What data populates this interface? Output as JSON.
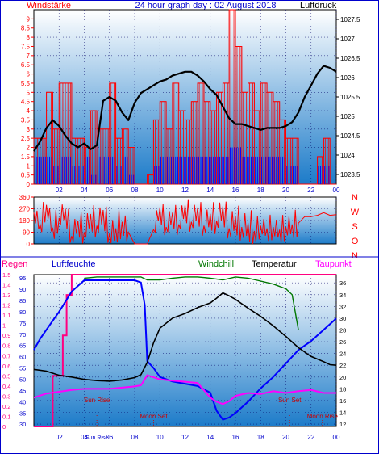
{
  "header": {
    "left_title": "Windstärke",
    "center_title": "24 hour graph day : 02 August 2018",
    "right_title": "Luftdruck"
  },
  "colors": {
    "wind_speed": "#ff0000",
    "wind_bar_low": "#0000ff",
    "pressure": "#000000",
    "direction": "#ff0000",
    "humidity": "#0000ff",
    "windchill": "#007700",
    "temperature": "#000000",
    "dewpoint": "#ff00ff",
    "rain": "#ff0080",
    "sun_text": "#cc0000",
    "bg_top": "#ffffff",
    "bg_bottom": "#1c7bc9"
  },
  "x_tick_labels": [
    "02",
    "04",
    "06",
    "08",
    "10",
    "12",
    "14",
    "16",
    "18",
    "20",
    "22",
    "00"
  ],
  "chart_data": [
    {
      "type": "bar",
      "name_left_axis": "Windstärke",
      "name_right_axis": "Luftdruck",
      "left_ticks": [
        "0",
        "0.5",
        "1",
        "1.5",
        "2",
        "2.5",
        "3",
        "3.5",
        "4",
        "4.5",
        "5",
        "5.5",
        "6",
        "6.5",
        "7",
        "7.5",
        "8",
        "8.5",
        "9"
      ],
      "right_ticks": [
        "1023.5",
        "1024",
        "1024.5",
        "1025",
        "1025.5",
        "1026",
        "1026.5",
        "1027",
        "1027.5"
      ],
      "ylim_left": [
        0,
        9.5
      ],
      "ylim_right": [
        1023.25,
        1027.75
      ],
      "xlim_hours": [
        0,
        24
      ],
      "pressure_series": {
        "x": [
          0,
          0.5,
          1,
          1.5,
          2,
          2.5,
          3,
          3.5,
          4,
          4.5,
          5,
          5.5,
          6,
          6.5,
          7,
          7.5,
          8,
          8.5,
          9,
          9.5,
          10,
          10.5,
          11,
          11.5,
          12,
          12.5,
          13,
          13.5,
          14,
          14.5,
          15,
          15.5,
          16,
          16.5,
          17,
          17.5,
          18,
          18.5,
          19,
          19.5,
          20,
          20.5,
          21,
          21.5,
          22,
          22.5,
          23,
          23.5,
          24
        ],
        "y": [
          1024.1,
          1024.35,
          1024.7,
          1024.9,
          1024.75,
          1024.5,
          1024.3,
          1024.2,
          1024.3,
          1024.15,
          1024.25,
          1025.4,
          1025.5,
          1025.4,
          1025.1,
          1024.9,
          1025.35,
          1025.6,
          1025.7,
          1025.8,
          1025.9,
          1025.95,
          1026.05,
          1026.1,
          1026.15,
          1026.15,
          1026.05,
          1025.9,
          1025.7,
          1025.55,
          1025.25,
          1024.95,
          1024.8,
          1024.8,
          1024.75,
          1024.7,
          1024.65,
          1024.7,
          1024.7,
          1024.7,
          1024.75,
          1024.85,
          1025.1,
          1025.5,
          1025.8,
          1026.1,
          1026.3,
          1026.25,
          1026.15
        ]
      },
      "wind_gust_series": {
        "x": [
          0,
          1,
          1.5,
          2,
          3,
          4,
          4.5,
          5,
          6,
          6.5,
          7,
          7.5,
          8,
          9,
          9.5,
          10,
          10.5,
          11,
          11.5,
          12,
          12.5,
          13,
          13.5,
          14,
          14.5,
          15,
          15.5,
          16,
          16.5,
          17,
          17.5,
          18,
          18.5,
          19,
          19.5,
          20,
          20.5,
          21,
          22,
          22.5,
          23,
          23.5
        ],
        "y": [
          2.5,
          5,
          3,
          5.5,
          2.5,
          2,
          4,
          3,
          5.5,
          2.5,
          3,
          2,
          0,
          0.5,
          3.5,
          4.5,
          3,
          5.5,
          4,
          3.5,
          4.5,
          5.5,
          4.5,
          4,
          5,
          5.5,
          9.5,
          7.5,
          5,
          5.5,
          4,
          5.5,
          5,
          4.5,
          3.5,
          2.5,
          2.5,
          0,
          0,
          1.5,
          2.5,
          0
        ]
      },
      "wind_speed_series": {
        "x": [
          0,
          1,
          1.5,
          2,
          3,
          4,
          4.5,
          5,
          6,
          6.5,
          7,
          7.5,
          8,
          9,
          9.5,
          10,
          10.5,
          11,
          11.5,
          12,
          12.5,
          13,
          13.5,
          14,
          14.5,
          15,
          15.5,
          16,
          16.5,
          17,
          17.5,
          18,
          18.5,
          19,
          19.5,
          20,
          20.5,
          21,
          22,
          22.5,
          23,
          23.5
        ],
        "y": [
          1.5,
          1.5,
          1,
          1.5,
          1,
          1.5,
          0.5,
          1.5,
          1.5,
          1,
          1.5,
          0.5,
          0,
          0,
          1,
          1.5,
          1.5,
          1.5,
          1.5,
          1.5,
          1.5,
          1.5,
          1.5,
          1.5,
          1.5,
          1.5,
          2,
          2,
          1.5,
          1.5,
          1.5,
          1.5,
          1.5,
          1.5,
          1.5,
          1,
          1,
          0,
          0,
          1,
          1,
          0
        ]
      }
    },
    {
      "type": "line",
      "right_axis_letters": [
        "N",
        "W",
        "S",
        "O",
        "N"
      ],
      "left_ticks": [
        "0",
        "90",
        "180",
        "270",
        "360"
      ],
      "ylim": [
        0,
        360
      ],
      "xlim_hours": [
        0,
        24
      ],
      "direction_series": {
        "x": [
          0,
          0.5,
          1,
          1.5,
          2,
          2.5,
          3,
          3.5,
          4,
          4.5,
          5,
          5.5,
          6,
          6.5,
          7,
          7.5,
          8,
          8.5,
          9,
          9.5,
          10,
          10.5,
          11,
          11.5,
          12,
          12.5,
          13,
          13.5,
          14,
          14.5,
          15,
          15.5,
          16,
          16.5,
          17,
          17.5,
          18,
          18.5,
          19,
          19.5,
          20,
          20.5,
          21,
          21.5,
          22,
          22.5,
          23,
          23.5,
          24
        ],
        "y": [
          240,
          150,
          300,
          120,
          200,
          270,
          60,
          180,
          90,
          230,
          140,
          260,
          80,
          120,
          170,
          90,
          0,
          0,
          0,
          110,
          280,
          130,
          240,
          150,
          300,
          170,
          280,
          140,
          230,
          180,
          290,
          120,
          210,
          130,
          160,
          100,
          140,
          120,
          130,
          110,
          130,
          150,
          160,
          210,
          210,
          220,
          240,
          220,
          225
        ]
      }
    },
    {
      "type": "line",
      "labels": {
        "rain": "Regen",
        "humidity": "Luftfeuchte",
        "windchill": "Windchill",
        "temperature": "Temperatur",
        "dewpoint": "Taupunkt"
      },
      "rain_ticks": [
        "0",
        "0.1",
        "0.2",
        "0.3",
        "0.4",
        "0.5",
        "0.6",
        "0.7",
        "0.8",
        "0.9",
        "1",
        "1.1",
        "1.2",
        "1.3",
        "1.4",
        "1.5"
      ],
      "humidity_ticks": [
        "30",
        "35",
        "40",
        "45",
        "50",
        "55",
        "60",
        "65",
        "70",
        "75",
        "80",
        "85",
        "90",
        "95"
      ],
      "temp_ticks": [
        "12",
        "14",
        "16",
        "18",
        "20",
        "22",
        "24",
        "26",
        "28",
        "30",
        "32",
        "34",
        "36"
      ],
      "ylim_rain": [
        0,
        1.5
      ],
      "ylim_humidity": [
        29,
        96.5
      ],
      "ylim_temp": [
        11.6,
        37.4
      ],
      "xlim_hours": [
        0,
        24
      ],
      "annotations": [
        {
          "text": "Sun Rise",
          "hour": 5.0,
          "kind": "sun"
        },
        {
          "text": "Moon Set",
          "hour": 9.5,
          "kind": "moon"
        },
        {
          "text": "Sun Set",
          "hour": 20.3,
          "kind": "sun"
        },
        {
          "text": "Moon Rise",
          "hour": 22.9,
          "kind": "moon"
        }
      ],
      "bottom_label": "Sun Rise",
      "bottom_label_hour": 5.0,
      "temperature_series": {
        "x": [
          0,
          1,
          2,
          3,
          4,
          5,
          6,
          7,
          8,
          8.5,
          9,
          9.5,
          10,
          11,
          12,
          13,
          14,
          14.5,
          15,
          15.5,
          16,
          17,
          18,
          19,
          20,
          21,
          22,
          23,
          23.5,
          24
        ],
        "y": [
          21.3,
          21,
          20.3,
          20,
          19.6,
          19.4,
          19.3,
          19.5,
          19.9,
          20.4,
          22.5,
          25.8,
          28.3,
          30,
          30.8,
          31.8,
          32.6,
          33.4,
          34.3,
          33.8,
          33.2,
          31.7,
          30.3,
          28.7,
          26.9,
          25,
          23.5,
          22.6,
          22.1,
          22
        ]
      },
      "windchill_series": {
        "x": [
          4,
          5,
          6,
          7,
          8,
          8.5,
          9,
          10,
          11,
          12,
          13,
          14,
          15,
          16,
          17,
          18,
          19,
          20,
          20.5,
          21
        ],
        "y": [
          36.8,
          37,
          37,
          37,
          37,
          37,
          36.5,
          36.5,
          36.8,
          37,
          37,
          36.8,
          36.5,
          37,
          36.8,
          36.3,
          35.8,
          35,
          34,
          28
        ]
      },
      "humidity_series": {
        "x": [
          0,
          0.5,
          1,
          1.5,
          2,
          3,
          4,
          5,
          6,
          7,
          8,
          8.5,
          8.8,
          9,
          9.5,
          10,
          11,
          12,
          13,
          14,
          14.5,
          15,
          15.5,
          16,
          17,
          18,
          19,
          20,
          21,
          22,
          23,
          24
        ],
        "y": [
          63,
          68,
          72,
          76,
          80,
          89,
          94,
          94,
          94,
          94,
          94,
          93,
          83,
          58,
          55,
          51,
          49,
          48,
          47,
          44,
          36,
          32,
          33,
          35,
          40,
          46,
          51,
          57,
          63,
          67,
          72,
          77
        ]
      },
      "dewpoint_series": {
        "x": [
          0,
          1,
          2,
          3,
          4,
          5,
          6,
          7,
          8,
          8.5,
          9,
          10,
          11,
          12,
          13,
          14,
          14.5,
          15,
          15.5,
          16,
          17,
          18,
          19,
          20,
          21,
          22,
          23,
          24
        ],
        "y": [
          16.5,
          17.2,
          17.5,
          17.8,
          18,
          18,
          18,
          18.2,
          18.4,
          18.6,
          20.3,
          19.6,
          19.4,
          19.2,
          19,
          16.5,
          15.8,
          15.4,
          15.9,
          16.8,
          17.3,
          17.1,
          17.6,
          17.3,
          17.6,
          17.8,
          17.3,
          17.3
        ]
      },
      "rain_series": {
        "x": [
          0,
          1.5,
          1.5,
          2.3,
          2.3,
          2.6,
          2.6,
          3,
          3,
          24
        ],
        "y": [
          0,
          0,
          0.5,
          0.5,
          0.9,
          0.9,
          1.3,
          1.3,
          1.5,
          1.5
        ]
      }
    }
  ]
}
